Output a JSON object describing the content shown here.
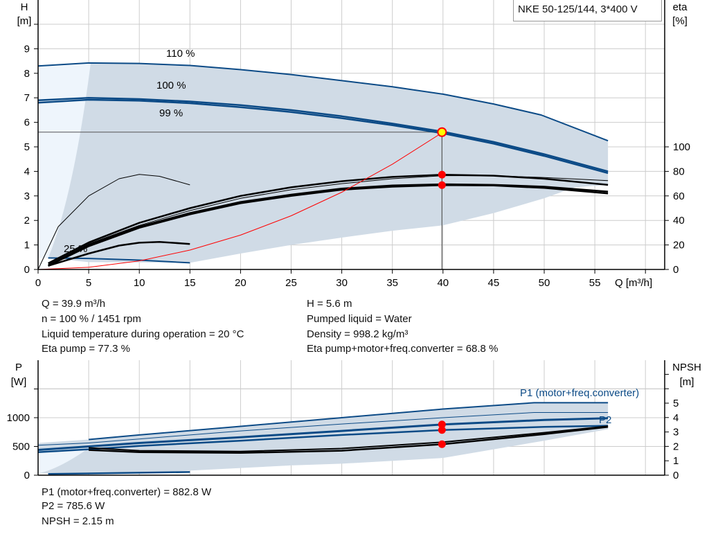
{
  "title_box": "NKE 50-125/144, 3*400 V",
  "colors": {
    "pump_curve": "#0b4a86",
    "eta_curve": "#000000",
    "system_curve": "#ff0000",
    "range_fill": "#d0dbe6",
    "range_fill_light": "#eef5fc",
    "grid": "#cccccc",
    "marker": "#ff0000",
    "duty_marker": "#ffff00"
  },
  "chart_data": [
    {
      "type": "line",
      "ylabel": "H",
      "yunit": "[m]",
      "y2label": "eta",
      "y2unit": "[%]",
      "xlabel": "Q [m³/h]",
      "xlim": [
        0,
        61
      ],
      "ylim": [
        0,
        11
      ],
      "y2lim": [
        0,
        220
      ],
      "xticks": [
        0,
        5,
        10,
        15,
        20,
        25,
        30,
        35,
        40,
        45,
        50,
        55
      ],
      "yticks": [
        0,
        1,
        2,
        3,
        4,
        5,
        6,
        7,
        8,
        9
      ],
      "y2ticks": [
        0,
        20,
        40,
        60,
        80,
        100
      ],
      "grid": true,
      "operating_range": {
        "upper": [
          [
            0,
            8.3
          ],
          [
            5,
            8.42
          ],
          [
            10,
            8.4
          ],
          [
            15,
            8.32
          ],
          [
            20,
            8.15
          ],
          [
            25,
            7.95
          ],
          [
            30,
            7.7
          ],
          [
            35,
            7.45
          ],
          [
            40,
            7.15
          ],
          [
            45,
            6.75
          ],
          [
            49.7,
            6.3
          ],
          [
            56.3,
            5.25
          ]
        ],
        "lower": [
          [
            56.3,
            3.45
          ],
          [
            53,
            3.35
          ],
          [
            50,
            2.9
          ],
          [
            45,
            2.3
          ],
          [
            40,
            1.8
          ],
          [
            35,
            1.58
          ],
          [
            30,
            1.3
          ],
          [
            25,
            1.0
          ],
          [
            20,
            0.65
          ],
          [
            15,
            0.27
          ],
          [
            5,
            0.3
          ],
          [
            1,
            0.47
          ]
        ]
      },
      "series": [
        {
          "name": "110 %",
          "kind": "H",
          "width": 2,
          "x": [
            0,
            5,
            10,
            15,
            20,
            25,
            30,
            35,
            40,
            45,
            49.7,
            56.3
          ],
          "y": [
            8.3,
            8.42,
            8.4,
            8.32,
            8.15,
            7.95,
            7.7,
            7.45,
            7.15,
            6.75,
            6.3,
            5.25
          ]
        },
        {
          "name": "100 %",
          "kind": "H",
          "width": 2.5,
          "x": [
            0,
            5,
            10,
            15,
            20,
            25,
            30,
            35,
            40,
            45,
            50,
            56.3
          ],
          "y": [
            6.9,
            7.0,
            6.95,
            6.85,
            6.7,
            6.5,
            6.25,
            5.95,
            5.62,
            5.2,
            4.7,
            4.0
          ]
        },
        {
          "name": "99 %",
          "kind": "H",
          "width": 2.5,
          "x": [
            0,
            5,
            10,
            15,
            20,
            25,
            30,
            35,
            40,
            45,
            50,
            56.3
          ],
          "y": [
            6.8,
            6.92,
            6.88,
            6.78,
            6.62,
            6.42,
            6.17,
            5.88,
            5.55,
            5.13,
            4.63,
            3.93
          ]
        },
        {
          "name": "25 %",
          "kind": "H",
          "width": 2,
          "x": [
            1,
            5,
            10,
            15
          ],
          "y": [
            0.47,
            0.45,
            0.38,
            0.27
          ]
        },
        {
          "kind": "eta",
          "width": 2.5,
          "x": [
            1,
            5,
            10,
            15,
            20,
            25,
            30,
            35,
            40,
            45,
            50,
            56.3
          ],
          "y2": [
            5,
            22,
            38,
            50,
            60,
            67,
            72,
            75.5,
            77.3,
            76.5,
            74,
            69
          ]
        },
        {
          "kind": "eta",
          "width": 1,
          "x": [
            1,
            5,
            10,
            15,
            20,
            25,
            30,
            35,
            40,
            45,
            50,
            56.3
          ],
          "y2": [
            4,
            21,
            36,
            48,
            58,
            65,
            70,
            74,
            76.5,
            76.5,
            75,
            72.5
          ]
        },
        {
          "kind": "eta",
          "width": 2.5,
          "x": [
            1,
            5,
            10,
            15,
            20,
            25,
            30,
            35,
            40,
            45,
            50,
            56.3
          ],
          "y2": [
            3,
            19,
            34,
            45,
            54,
            60,
            65,
            67.5,
            68.8,
            68.5,
            66.5,
            62
          ]
        },
        {
          "kind": "eta",
          "width": 2.5,
          "x": [
            1,
            5,
            10,
            15,
            20,
            25,
            30,
            35,
            40,
            45,
            50,
            56.3
          ],
          "y2": [
            3,
            20,
            35,
            46,
            55,
            61,
            66,
            68.5,
            69.5,
            69,
            67.5,
            63.5
          ]
        },
        {
          "kind": "eta",
          "width": 1,
          "x": [
            0,
            2,
            5,
            8,
            10,
            12,
            15
          ],
          "y2": [
            0,
            35,
            60,
            74,
            77.5,
            76,
            69
          ]
        },
        {
          "kind": "eta",
          "width": 2.5,
          "x": [
            1,
            5,
            8,
            10,
            12,
            15
          ],
          "y2": [
            3,
            13,
            19.5,
            21.8,
            22.5,
            20.8
          ]
        },
        {
          "kind": "system",
          "width": 1,
          "x": [
            0,
            5,
            10,
            15,
            20,
            25,
            30,
            35,
            40
          ],
          "y": [
            0,
            0.0875,
            0.35,
            0.79,
            1.4,
            2.19,
            3.15,
            4.29,
            5.6
          ]
        }
      ],
      "markers": [
        {
          "x": 39.9,
          "y": 5.6,
          "kind": "duty"
        },
        {
          "x": 39.9,
          "y2": 77.3
        },
        {
          "x": 39.9,
          "y2": 68.8
        }
      ],
      "duty_lines": {
        "q": 39.9,
        "h": 5.6
      }
    },
    {
      "type": "line",
      "ylabel": "P",
      "yunit": "[W]",
      "y2label": "NPSH",
      "y2unit": "[m]",
      "xlim": [
        0,
        61
      ],
      "ylim": [
        0,
        2000
      ],
      "y2lim": [
        0,
        8
      ],
      "yticks": [
        0,
        500,
        1000
      ],
      "y2ticks": [
        0,
        1,
        2,
        3,
        4,
        5
      ],
      "grid": true,
      "operating_range": {
        "upper": [
          [
            0,
            560
          ],
          [
            5,
            620
          ],
          [
            10,
            700
          ],
          [
            20,
            850
          ],
          [
            30,
            1000
          ],
          [
            40,
            1150
          ],
          [
            49,
            1260
          ],
          [
            56.3,
            1260
          ]
        ],
        "lower": [
          [
            56.3,
            800
          ],
          [
            50,
            600
          ],
          [
            40,
            300
          ],
          [
            30,
            200
          ],
          [
            25,
            170
          ],
          [
            15,
            80
          ],
          [
            10,
            40
          ],
          [
            0,
            30
          ]
        ]
      },
      "series": [
        {
          "name": "P1 (motor+freq.converter)",
          "kind": "P",
          "width": 2,
          "x": [
            5,
            10,
            20,
            30,
            40,
            49,
            56.3
          ],
          "y": [
            620,
            700,
            850,
            1000,
            1150,
            1260,
            1260
          ]
        },
        {
          "kind": "P",
          "width": 1,
          "x": [
            0,
            5,
            10,
            20,
            30,
            40,
            49,
            56.3
          ],
          "y": [
            520,
            560,
            630,
            770,
            890,
            1000,
            1090,
            1090
          ]
        },
        {
          "kind": "P",
          "width": 3,
          "x": [
            0,
            5,
            10,
            20,
            30,
            40,
            50,
            56.3
          ],
          "y": [
            440,
            500,
            560,
            660,
            770,
            883,
            960,
            990
          ]
        },
        {
          "name": "P2",
          "kind": "P",
          "width": 2.5,
          "x": [
            0,
            5,
            10,
            20,
            30,
            40,
            50,
            56.3
          ],
          "y": [
            400,
            450,
            510,
            600,
            700,
            786,
            840,
            860
          ]
        },
        {
          "kind": "npsh",
          "width": 2.5,
          "x": [
            5,
            10,
            20,
            30,
            40,
            50,
            56.3
          ],
          "y2": [
            1.75,
            1.6,
            1.55,
            1.7,
            2.15,
            2.85,
            3.35
          ]
        },
        {
          "kind": "npsh",
          "width": 2,
          "x": [
            5,
            10,
            20,
            30,
            40,
            50,
            56.3
          ],
          "y2": [
            1.9,
            1.7,
            1.65,
            1.85,
            2.3,
            2.95,
            3.4
          ]
        },
        {
          "kind": "P",
          "width": 2.5,
          "x": [
            1,
            15
          ],
          "y": [
            20,
            55
          ]
        }
      ],
      "markers": [
        {
          "x": 39.9,
          "y": 882.8
        },
        {
          "x": 39.9,
          "y": 785.6
        },
        {
          "x": 39.9,
          "y2": 2.15
        }
      ]
    }
  ],
  "curve_labels": {
    "h110": "110 %",
    "h100": "100 %",
    "h99": "99 %",
    "h25": "25 %",
    "p1": "P1 (motor+freq.converter)",
    "p2": "P2"
  },
  "axes": {
    "h": "H",
    "h_unit": "[m]",
    "eta": "eta",
    "eta_unit": "[%]",
    "q": "Q [m³/h]",
    "p": "P",
    "p_unit": "[W]",
    "npsh": "NPSH",
    "npsh_unit": "[m]"
  },
  "info_top": {
    "left": [
      "Q = 39.9 m³/h",
      "n = 100 % / 1451 rpm",
      "Liquid temperature during operation = 20 °C",
      "Eta pump = 77.3 %"
    ],
    "right": [
      "H = 5.6 m",
      "Pumped liquid = Water",
      "Density = 998.2 kg/m³",
      "Eta pump+motor+freq.converter = 68.8 %"
    ]
  },
  "info_bottom": [
    "P1 (motor+freq.converter) = 882.8 W",
    "P2 = 785.6 W",
    "NPSH = 2.15 m"
  ]
}
